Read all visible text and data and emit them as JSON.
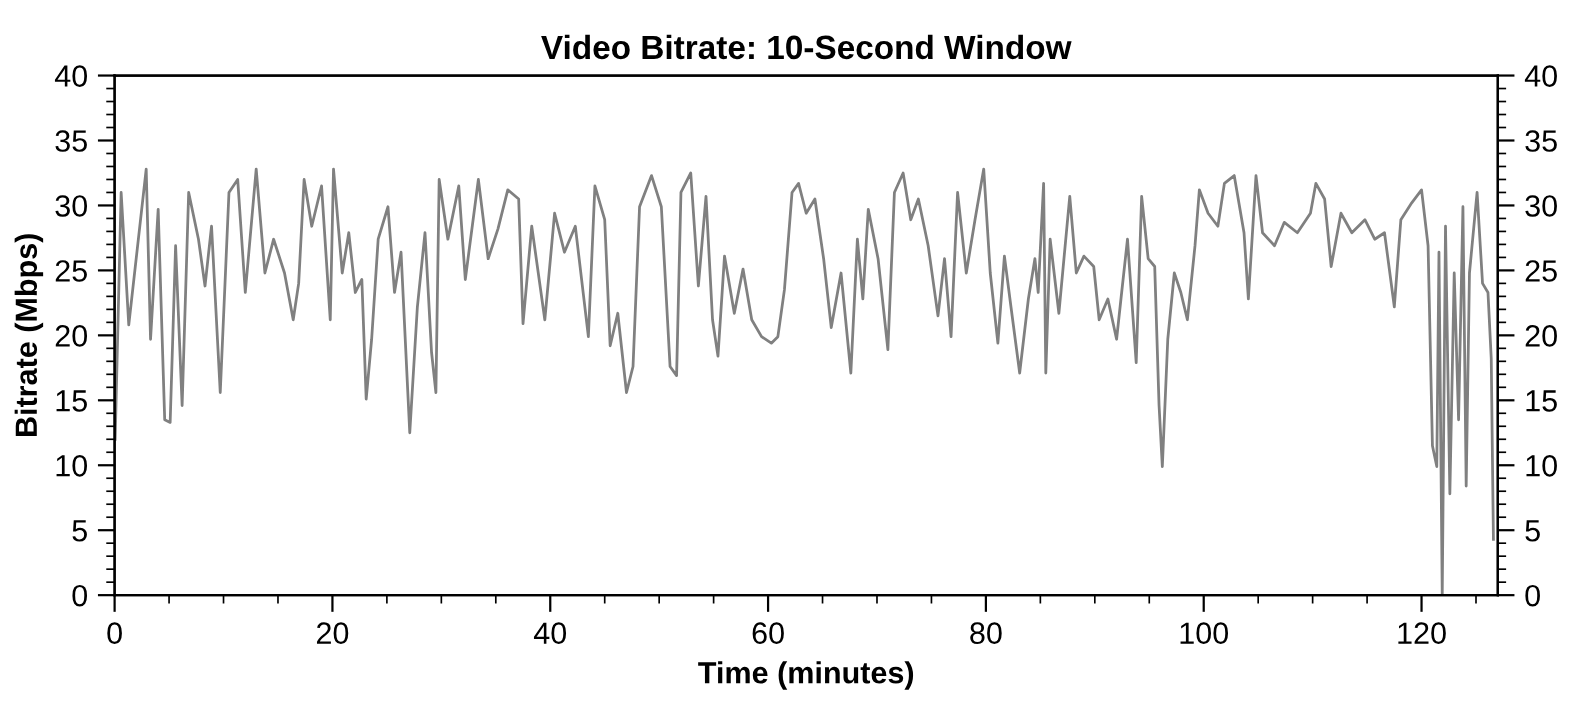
{
  "chart_data": {
    "type": "line",
    "title": "Video Bitrate: 10-Second Window",
    "xlabel": "Time (minutes)",
    "ylabel": "Bitrate (Mbps)",
    "xlim": [
      0,
      127
    ],
    "ylim": [
      0,
      40
    ],
    "y2lim": [
      0,
      40
    ],
    "xticks": [
      0,
      {
        "value": 5,
        "label": null
      },
      {
        "value": 10,
        "label": null
      },
      {
        "value": 15,
        "label": null
      },
      20,
      {
        "value": 25,
        "label": null
      },
      {
        "value": 30,
        "label": null
      },
      {
        "value": 35,
        "label": null
      },
      40,
      {
        "value": 45,
        "label": null
      },
      {
        "value": 50,
        "label": null
      },
      {
        "value": 55,
        "label": null
      },
      60,
      {
        "value": 65,
        "label": null
      },
      {
        "value": 70,
        "label": null
      },
      {
        "value": 75,
        "label": null
      },
      80,
      {
        "value": 85,
        "label": null
      },
      {
        "value": 90,
        "label": null
      },
      {
        "value": 95,
        "label": null
      },
      100,
      {
        "value": 105,
        "label": null
      },
      {
        "value": 110,
        "label": null
      },
      {
        "value": 115,
        "label": null
      },
      120,
      {
        "value": 125,
        "label": null
      }
    ],
    "yticks": [
      0,
      {
        "value": 1,
        "label": null
      },
      {
        "value": 2,
        "label": null
      },
      {
        "value": 3,
        "label": null
      },
      {
        "value": 4,
        "label": null
      },
      5,
      {
        "value": 6,
        "label": null
      },
      {
        "value": 7,
        "label": null
      },
      {
        "value": 8,
        "label": null
      },
      {
        "value": 9,
        "label": null
      },
      10,
      {
        "value": 11,
        "label": null
      },
      {
        "value": 12,
        "label": null
      },
      {
        "value": 13,
        "label": null
      },
      {
        "value": 14,
        "label": null
      },
      15,
      {
        "value": 16,
        "label": null
      },
      {
        "value": 17,
        "label": null
      },
      {
        "value": 18,
        "label": null
      },
      {
        "value": 19,
        "label": null
      },
      20,
      {
        "value": 21,
        "label": null
      },
      {
        "value": 22,
        "label": null
      },
      {
        "value": 23,
        "label": null
      },
      {
        "value": 24,
        "label": null
      },
      25,
      {
        "value": 26,
        "label": null
      },
      {
        "value": 27,
        "label": null
      },
      {
        "value": 28,
        "label": null
      },
      {
        "value": 29,
        "label": null
      },
      30,
      {
        "value": 31,
        "label": null
      },
      {
        "value": 32,
        "label": null
      },
      {
        "value": 33,
        "label": null
      },
      {
        "value": 34,
        "label": null
      },
      35,
      {
        "value": 36,
        "label": null
      },
      {
        "value": 37,
        "label": null
      },
      {
        "value": 38,
        "label": null
      },
      {
        "value": 39,
        "label": null
      },
      40
    ],
    "y2ticks": [
      0,
      {
        "value": 1,
        "label": null
      },
      {
        "value": 2,
        "label": null
      },
      {
        "value": 3,
        "label": null
      },
      {
        "value": 4,
        "label": null
      },
      5,
      {
        "value": 6,
        "label": null
      },
      {
        "value": 7,
        "label": null
      },
      {
        "value": 8,
        "label": null
      },
      {
        "value": 9,
        "label": null
      },
      10,
      {
        "value": 11,
        "label": null
      },
      {
        "value": 12,
        "label": null
      },
      {
        "value": 13,
        "label": null
      },
      {
        "value": 14,
        "label": null
      },
      15,
      {
        "value": 16,
        "label": null
      },
      {
        "value": 17,
        "label": null
      },
      {
        "value": 18,
        "label": null
      },
      {
        "value": 19,
        "label": null
      },
      20,
      {
        "value": 21,
        "label": null
      },
      {
        "value": 22,
        "label": null
      },
      {
        "value": 23,
        "label": null
      },
      {
        "value": 24,
        "label": null
      },
      25,
      {
        "value": 26,
        "label": null
      },
      {
        "value": 27,
        "label": null
      },
      {
        "value": 28,
        "label": null
      },
      {
        "value": 29,
        "label": null
      },
      30,
      {
        "value": 31,
        "label": null
      },
      {
        "value": 32,
        "label": null
      },
      {
        "value": 33,
        "label": null
      },
      {
        "value": 34,
        "label": null
      },
      35,
      {
        "value": 36,
        "label": null
      },
      {
        "value": 37,
        "label": null
      },
      {
        "value": 38,
        "label": null
      },
      {
        "value": 39,
        "label": null
      },
      40
    ],
    "grid": false,
    "legend": false,
    "series": [
      {
        "color": "#808080",
        "x": [
          0.05,
          0.6,
          1.3,
          2.9,
          3.3,
          4.0,
          4.6,
          5.1,
          5.6,
          6.2,
          6.8,
          7.7,
          8.3,
          8.9,
          9.7,
          10.5,
          11.3,
          12.0,
          13.0,
          13.8,
          14.6,
          15.6,
          16.4,
          16.9,
          17.4,
          18.1,
          19.0,
          19.8,
          20.1,
          20.9,
          21.5,
          22.1,
          22.7,
          23.1,
          23.6,
          24.2,
          25.1,
          25.7,
          26.3,
          27.1,
          27.8,
          28.5,
          29.1,
          29.5,
          29.8,
          30.6,
          31.6,
          32.2,
          33.4,
          34.3,
          35.2,
          36.1,
          37.1,
          37.5,
          38.3,
          39.5,
          40.4,
          41.3,
          42.3,
          43.5,
          44.1,
          45.0,
          45.5,
          46.2,
          47.0,
          47.6,
          48.2,
          49.3,
          50.2,
          51.0,
          51.6,
          52.0,
          52.9,
          53.6,
          54.3,
          54.9,
          55.4,
          56.0,
          56.9,
          57.7,
          58.5,
          59.4,
          60.3,
          60.9,
          61.5,
          62.2,
          62.8,
          63.5,
          64.3,
          65.1,
          65.8,
          66.7,
          67.6,
          68.2,
          68.7,
          69.2,
          70.1,
          71.0,
          71.6,
          72.4,
          73.1,
          73.8,
          74.7,
          75.6,
          76.2,
          76.8,
          77.4,
          78.2,
          79.0,
          79.8,
          80.4,
          81.1,
          81.7,
          82.3,
          83.1,
          83.9,
          84.5,
          84.8,
          85.3,
          85.5,
          85.9,
          86.7,
          87.7,
          88.3,
          89.0,
          89.9,
          90.4,
          91.2,
          92.0,
          92.4,
          93.0,
          93.8,
          94.3,
          94.9,
          95.5,
          95.9,
          96.2,
          96.7,
          97.3,
          97.9,
          98.5,
          99.2,
          99.6,
          100.4,
          101.3,
          101.9,
          102.8,
          103.7,
          104.1,
          104.8,
          105.4,
          106.5,
          107.4,
          108.6,
          109.8,
          110.3,
          111.1,
          111.7,
          112.6,
          113.6,
          114.8,
          115.7,
          116.6,
          117.5,
          118.1,
          119.1,
          120.0,
          120.6,
          121.0,
          121.4,
          121.6,
          121.9,
          122.2,
          122.6,
          123.0,
          123.4,
          123.8,
          124.1,
          124.4,
          125.1,
          125.6,
          126.1,
          126.4,
          126.6
        ],
        "values": [
          12,
          31,
          20.8,
          32.8,
          19.7,
          29.7,
          13.5,
          13.3,
          26.9,
          14.6,
          31,
          27.4,
          23.8,
          28.4,
          15.6,
          31,
          32,
          23.3,
          32.8,
          24.8,
          27.4,
          24.8,
          21.2,
          24,
          32,
          28.4,
          31.5,
          21.2,
          32.8,
          24.8,
          27.9,
          23.3,
          24.3,
          15.1,
          19.7,
          27.4,
          29.9,
          23.3,
          26.4,
          12.5,
          22.2,
          27.9,
          18.7,
          15.6,
          32,
          27.4,
          31.5,
          24.3,
          32,
          25.9,
          28.2,
          31.2,
          30.5,
          20.9,
          28.4,
          21.2,
          29.4,
          26.4,
          28.4,
          19.9,
          31.5,
          28.9,
          19.2,
          21.7,
          15.6,
          17.6,
          29.9,
          32.3,
          29.9,
          17.6,
          16.9,
          31,
          32.5,
          23.8,
          30.7,
          21.2,
          18.4,
          26.1,
          21.7,
          25.1,
          21.2,
          19.9,
          19.4,
          19.9,
          23.5,
          31,
          31.7,
          29.4,
          30.5,
          25.9,
          20.6,
          24.8,
          17.1,
          27.4,
          22.8,
          29.7,
          25.9,
          18.9,
          31,
          32.5,
          28.9,
          30.5,
          26.9,
          21.5,
          25.9,
          19.9,
          31,
          24.8,
          28.9,
          32.8,
          24.8,
          19.4,
          26.1,
          22.2,
          17.1,
          22.8,
          25.9,
          23.3,
          31.7,
          17.1,
          27.4,
          21.7,
          30.7,
          24.8,
          26.1,
          25.3,
          21.2,
          22.8,
          19.7,
          22.8,
          27.4,
          17.9,
          30.7,
          25.9,
          25.3,
          14.6,
          9.9,
          19.7,
          24.8,
          23.3,
          21.2,
          26.9,
          31.2,
          29.4,
          28.4,
          31.7,
          32.3,
          27.9,
          22.8,
          32.3,
          27.9,
          26.9,
          28.7,
          27.9,
          29.4,
          31.7,
          30.5,
          25.3,
          29.4,
          27.9,
          28.9,
          27.4,
          27.9,
          22.2,
          28.9,
          30.2,
          31.2,
          26.9,
          11.5,
          9.9,
          26.4,
          0,
          28.4,
          7.8,
          24.8,
          13.5,
          29.9,
          8.4,
          24.8,
          31,
          24,
          23.3,
          18.2,
          4.3
        ]
      }
    ]
  }
}
